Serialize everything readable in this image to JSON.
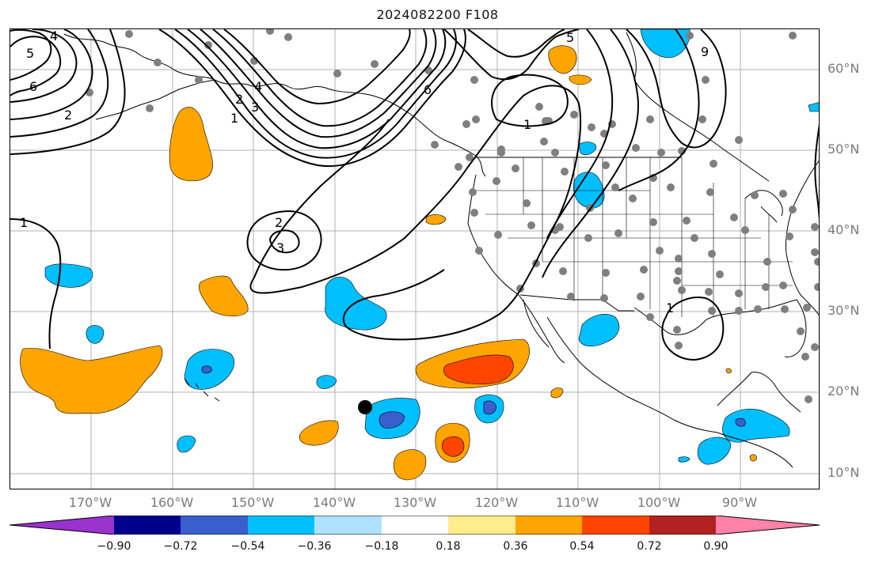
{
  "title": "2024082200 F108",
  "lat_labels": [
    "60°N",
    "50°N",
    "40°N",
    "30°N",
    "20°N",
    "10°N"
  ],
  "lon_labels": [
    "170°W",
    "160°W",
    "150°W",
    "140°W",
    "130°W",
    "120°W",
    "110°W",
    "100°W",
    "90°W"
  ],
  "colorbar": {
    "ticks": [
      "−0.90",
      "−0.72",
      "−0.54",
      "−0.36",
      "−0.18",
      "0.18",
      "0.36",
      "0.54",
      "0.72",
      "0.90"
    ],
    "colors": [
      "#9a32cd",
      "#00008b",
      "#3a5fcd",
      "#00bfff",
      "#b0e2ff",
      "#ffffff",
      "#ffec8b",
      "#ffa500",
      "#ff4500",
      "#b22222",
      "#ff82ab"
    ]
  },
  "contour_labels": {
    "c5_nw": "5",
    "c4_nw": "4",
    "c6_nw": "6",
    "c2_nw": "2",
    "c1_w": "1",
    "c1_gulf": "1",
    "c2_gulf": "2",
    "c3_gulf": "3",
    "c4_gulf": "4",
    "c2_low": "2",
    "c3_low": "3",
    "c5_n": "5",
    "c6_n": "6",
    "c1_bc": "1",
    "c9_ne": "9",
    "c1_tex": "1"
  }
}
